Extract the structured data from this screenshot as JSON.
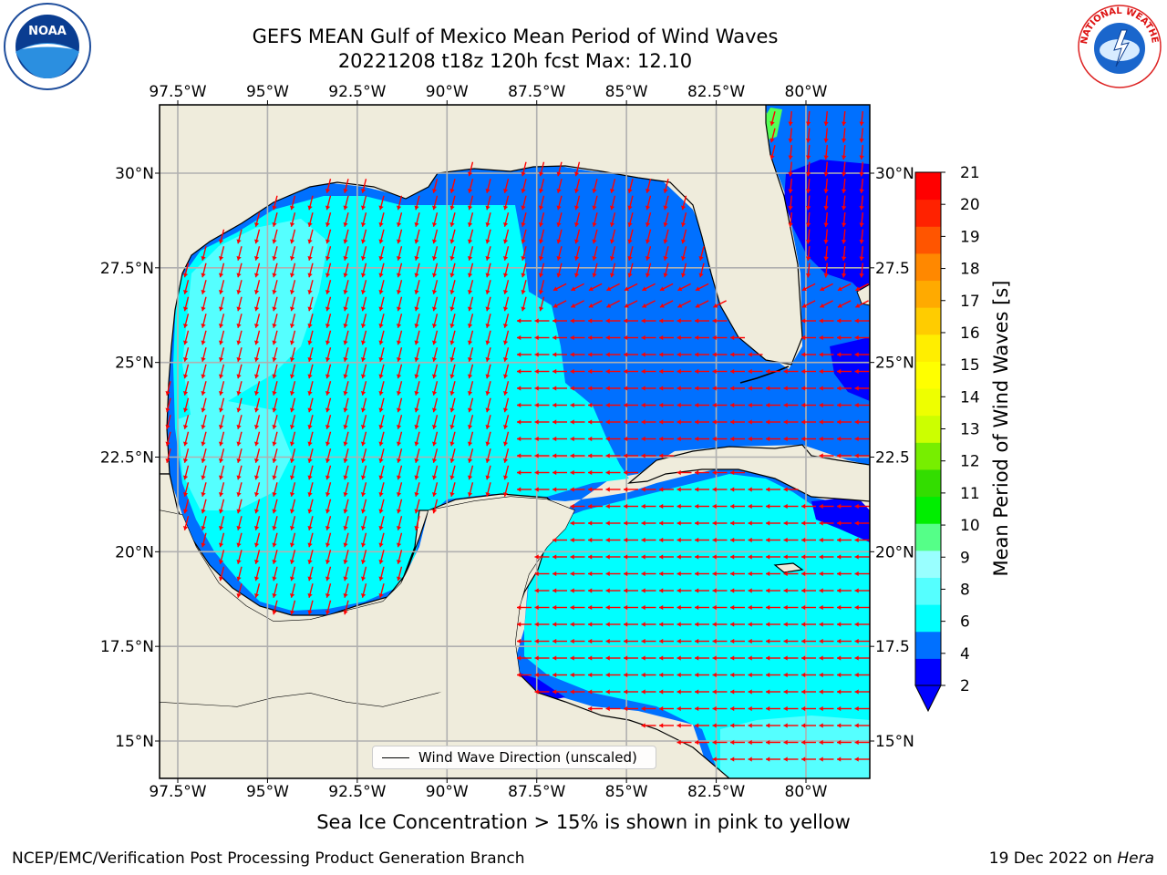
{
  "title": {
    "line1": "GEFS MEAN Gulf of Mexico Mean Period of Wind Waves",
    "line2": "20221208 t18z 120h fcst   Max: 12.10"
  },
  "map": {
    "lon_ticks_top": [
      "97.5°W",
      "95°W",
      "92.5°W",
      "90°W",
      "87.5°W",
      "85°W",
      "82.5°W",
      "80°W"
    ],
    "lon_ticks_bottom": [
      "97.5°W",
      "95°W",
      "92.5°W",
      "90°W",
      "87.5°W",
      "85°W",
      "82.5°W",
      "80°W"
    ],
    "lat_ticks_left": [
      "30°N",
      "27.5°N",
      "25°N",
      "22.5°N",
      "20°N",
      "17.5°N",
      "15°N"
    ],
    "lat_ticks_right": [
      "30°N",
      "27.5",
      "25°N",
      "22.5",
      "20°N",
      "17.5",
      "15°N"
    ],
    "lon_values": [
      -97.5,
      -95,
      -92.5,
      -90,
      -87.5,
      -85,
      -82.5,
      -80
    ],
    "lat_values": [
      30,
      27.5,
      25,
      22.5,
      20,
      17.5,
      15
    ],
    "land_color": "#efecdc",
    "legend_label": "Wind Wave Direction (unscaled)"
  },
  "colorbar": {
    "label": "Mean Period of Wind Waves [s]",
    "ticks": [
      "21",
      "20",
      "19",
      "18",
      "17",
      "16",
      "15",
      "14",
      "13",
      "12",
      "11",
      "10",
      "9",
      "8",
      "6",
      "4",
      "2"
    ],
    "colors": [
      "#0000ff",
      "#0070ff",
      "#00ffff",
      "#55ffff",
      "#99ffff",
      "#55ff88",
      "#00ee00",
      "#33dd00",
      "#77ee00",
      "#ccff00",
      "#eeff00",
      "#ffff00",
      "#ffee00",
      "#ffcc00",
      "#ffaa00",
      "#ff8800",
      "#ff5500",
      "#ff2200",
      "#ff0000"
    ]
  },
  "note": "Sea Ice Concentration > 15% is shown in pink to yellow",
  "footer": {
    "left": "NCEP/EMC/Verification Post Processing Product Generation Branch",
    "right_date": "19 Dec 2022 on ",
    "right_host": "Hera"
  },
  "logos": {
    "noaa_text": "NOAA",
    "nws_text": "NATIONAL WEATHER SERVICE"
  }
}
